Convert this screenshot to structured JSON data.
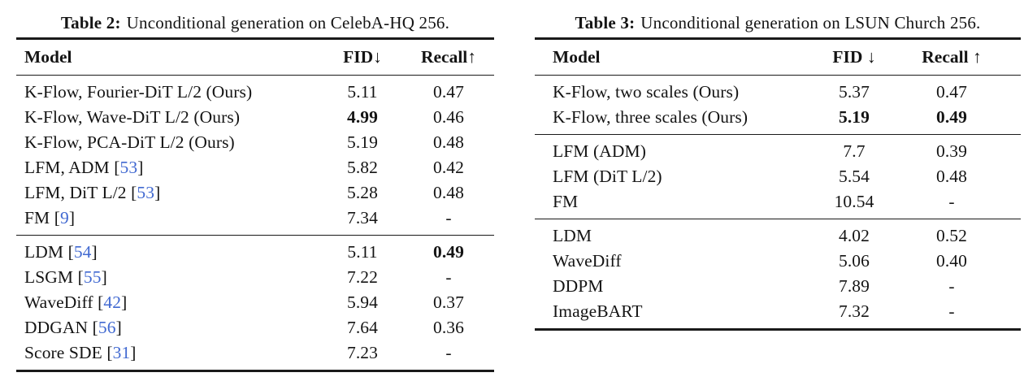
{
  "page": {
    "background": "#ffffff",
    "text_color": "#141414",
    "rule_color": "#1a1a1a",
    "cite_color": "#4169d1",
    "cite_open": "[",
    "cite_close": "]"
  },
  "table2": {
    "caption_label": "Table 2:",
    "caption_text": "Unconditional generation on CelebA-HQ 256.",
    "columns": {
      "model": "Model",
      "fid": "FID↓",
      "recall": "Recall↑"
    },
    "sections": [
      {
        "rows": [
          {
            "model": "K-Flow, Fourier-DiT L/2 (Ours)",
            "fid": "5.11",
            "recall": "0.47"
          },
          {
            "model": "K-Flow, Wave-DiT L/2 (Ours)",
            "fid": "4.99",
            "fid_bold": true,
            "recall": "0.46"
          },
          {
            "model": "K-Flow, PCA-DiT L/2 (Ours)",
            "fid": "5.19",
            "recall": "0.48"
          },
          {
            "model": "LFM, ADM ",
            "cite": "53",
            "fid": "5.82",
            "recall": "0.42"
          },
          {
            "model": "LFM, DiT L/2 ",
            "cite": "53",
            "fid": "5.28",
            "recall": "0.48"
          },
          {
            "model": "FM ",
            "cite": "9",
            "fid": "7.34",
            "recall": "-"
          }
        ]
      },
      {
        "rows": [
          {
            "model": "LDM ",
            "cite": "54",
            "fid": "5.11",
            "recall": "0.49",
            "recall_bold": true
          },
          {
            "model": "LSGM ",
            "cite": "55",
            "fid": "7.22",
            "recall": "-"
          },
          {
            "model": "WaveDiff ",
            "cite": "42",
            "fid": "5.94",
            "recall": "0.37"
          },
          {
            "model": "DDGAN ",
            "cite": "56",
            "fid": "7.64",
            "recall": "0.36"
          },
          {
            "model": "Score SDE ",
            "cite": "31",
            "fid": "7.23",
            "recall": "-"
          }
        ]
      }
    ]
  },
  "table3": {
    "caption_label": "Table 3:",
    "caption_text": "Unconditional generation on LSUN Church 256.",
    "columns": {
      "model": "Model",
      "fid": "FID ↓",
      "recall": "Recall ↑"
    },
    "sections": [
      {
        "rows": [
          {
            "model": "K-Flow, two scales (Ours)",
            "fid": "5.37",
            "recall": "0.47"
          },
          {
            "model": "K-Flow, three scales (Ours)",
            "fid": "5.19",
            "fid_bold": true,
            "recall": "0.49",
            "recall_bold": true
          }
        ]
      },
      {
        "rows": [
          {
            "model": "LFM (ADM)",
            "fid": "7.7",
            "recall": "0.39"
          },
          {
            "model": "LFM (DiT L/2)",
            "fid": "5.54",
            "recall": "0.48"
          },
          {
            "model": "FM",
            "fid": "10.54",
            "recall": "-"
          }
        ]
      },
      {
        "rows": [
          {
            "model": "LDM",
            "fid": "4.02",
            "recall": "0.52"
          },
          {
            "model": "WaveDiff",
            "fid": "5.06",
            "recall": "0.40"
          },
          {
            "model": "DDPM",
            "fid": "7.89",
            "recall": "-"
          },
          {
            "model": "ImageBART",
            "fid": "7.32",
            "recall": "-"
          }
        ]
      }
    ]
  }
}
